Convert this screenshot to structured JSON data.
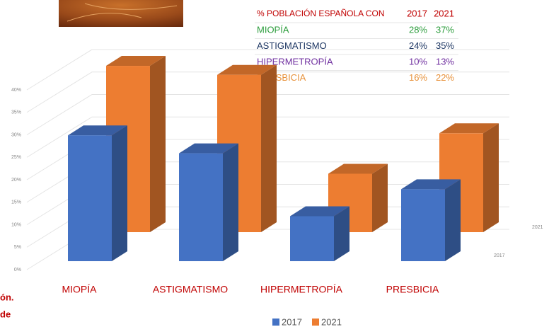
{
  "chart_data": {
    "type": "bar3d",
    "table_title": "% POBLACIÓN ESPAÑOLA CON",
    "categories": [
      "MIOPÍA",
      "ASTIGMATISMO",
      "HIPERMETROPÍA",
      "PRESBICIA"
    ],
    "category_color": "#c00000",
    "row_colors": [
      "#2e9e3e",
      "#1f3864",
      "#7030a0",
      "#e7913a"
    ],
    "series": [
      {
        "name": "2017",
        "color": "#4472c4",
        "values": [
          28,
          24,
          10,
          16
        ],
        "value_labels": [
          "28%",
          "24%",
          "10%",
          "16%"
        ]
      },
      {
        "name": "2021",
        "color": "#ed7d31",
        "values": [
          37,
          35,
          13,
          22
        ],
        "value_labels": [
          "37%",
          "35%",
          "13%",
          "22%"
        ]
      }
    ],
    "ylim": [
      0,
      40
    ],
    "yticks": [
      {
        "value": 0,
        "label": "0%"
      },
      {
        "value": 5,
        "label": "5%"
      },
      {
        "value": 10,
        "label": "10%"
      },
      {
        "value": 15,
        "label": "15%"
      },
      {
        "value": 20,
        "label": "20%"
      },
      {
        "value": 25,
        "label": "25%"
      },
      {
        "value": 30,
        "label": "30%"
      },
      {
        "value": 35,
        "label": "35%"
      },
      {
        "value": 40,
        "label": "40%"
      }
    ],
    "grid": true
  },
  "side_text": [
    "ón.",
    "de"
  ]
}
